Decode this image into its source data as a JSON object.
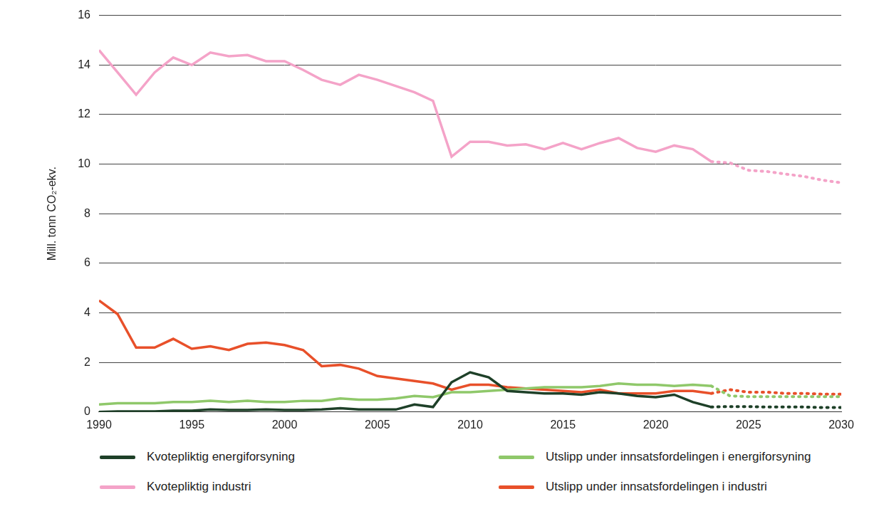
{
  "chart_data": {
    "type": "line",
    "y_label": "Mill. tonn CO₂-ekv.",
    "x": [
      1990,
      1991,
      1992,
      1993,
      1994,
      1995,
      1996,
      1997,
      1998,
      1999,
      2000,
      2001,
      2002,
      2003,
      2004,
      2005,
      2006,
      2007,
      2008,
      2009,
      2010,
      2011,
      2012,
      2013,
      2014,
      2015,
      2016,
      2017,
      2018,
      2019,
      2020,
      2021,
      2022,
      2023,
      2024,
      2025,
      2026,
      2027,
      2028,
      2029,
      2030
    ],
    "xlim": [
      1990,
      2030
    ],
    "xticks": [
      1990,
      1995,
      2000,
      2005,
      2010,
      2015,
      2020,
      2025,
      2030
    ],
    "ylim": [
      0,
      16
    ],
    "yticks": [
      0,
      2,
      4,
      6,
      8,
      10,
      12,
      14,
      16
    ],
    "grid": true,
    "legend": "bottom",
    "series": [
      {
        "name": "Kvotepliktig energiforsyning",
        "color": "#1e4028",
        "line_style": "solid",
        "values": [
          0.0,
          0.02,
          0.02,
          0.02,
          0.05,
          0.05,
          0.1,
          0.08,
          0.08,
          0.1,
          0.08,
          0.08,
          0.1,
          0.15,
          0.1,
          0.1,
          0.1,
          0.3,
          0.2,
          1.2,
          1.6,
          1.4,
          0.85,
          0.8,
          0.75,
          0.75,
          0.7,
          0.8,
          0.75,
          0.65,
          0.6,
          0.7,
          0.4,
          0.2,
          null,
          null,
          null,
          null,
          null,
          null,
          null
        ]
      },
      {
        "name": "Kvotepliktig energiforsyning",
        "color": "#1e4028",
        "line_style": "dotted",
        "values": [
          null,
          null,
          null,
          null,
          null,
          null,
          null,
          null,
          null,
          null,
          null,
          null,
          null,
          null,
          null,
          null,
          null,
          null,
          null,
          null,
          null,
          null,
          null,
          null,
          null,
          null,
          null,
          null,
          null,
          null,
          null,
          null,
          null,
          0.2,
          0.22,
          0.22,
          0.2,
          0.2,
          0.2,
          0.18,
          0.18
        ]
      },
      {
        "name": "Utslipp under innsatsfordelingen i energiforsyning",
        "color": "#8fc86a",
        "line_style": "solid",
        "values": [
          0.3,
          0.35,
          0.35,
          0.35,
          0.4,
          0.4,
          0.45,
          0.4,
          0.45,
          0.4,
          0.4,
          0.45,
          0.45,
          0.55,
          0.5,
          0.5,
          0.55,
          0.65,
          0.6,
          0.8,
          0.8,
          0.85,
          0.9,
          0.95,
          1.0,
          1.0,
          1.0,
          1.05,
          1.15,
          1.1,
          1.1,
          1.05,
          1.1,
          1.05,
          null,
          null,
          null,
          null,
          null,
          null,
          null
        ]
      },
      {
        "name": "Utslipp under innsatsfordelingen i energiforsyning",
        "color": "#8fc86a",
        "line_style": "dotted",
        "values": [
          null,
          null,
          null,
          null,
          null,
          null,
          null,
          null,
          null,
          null,
          null,
          null,
          null,
          null,
          null,
          null,
          null,
          null,
          null,
          null,
          null,
          null,
          null,
          null,
          null,
          null,
          null,
          null,
          null,
          null,
          null,
          null,
          null,
          1.05,
          0.65,
          0.62,
          0.62,
          0.62,
          0.62,
          0.62,
          0.62
        ]
      },
      {
        "name": "Kvotepliktig industri",
        "color": "#f4a3c8",
        "line_style": "solid",
        "values": [
          14.6,
          13.7,
          12.8,
          13.7,
          14.3,
          14.0,
          14.5,
          14.35,
          14.4,
          14.15,
          14.15,
          13.8,
          13.4,
          13.2,
          13.6,
          13.4,
          13.15,
          12.9,
          12.55,
          10.3,
          10.9,
          10.9,
          10.75,
          10.8,
          10.6,
          10.85,
          10.6,
          10.85,
          11.05,
          10.65,
          10.5,
          10.75,
          10.6,
          10.1,
          null,
          null,
          null,
          null,
          null,
          null,
          null
        ]
      },
      {
        "name": "Kvotepliktig industri",
        "color": "#f4a3c8",
        "line_style": "dotted",
        "values": [
          null,
          null,
          null,
          null,
          null,
          null,
          null,
          null,
          null,
          null,
          null,
          null,
          null,
          null,
          null,
          null,
          null,
          null,
          null,
          null,
          null,
          null,
          null,
          null,
          null,
          null,
          null,
          null,
          null,
          null,
          null,
          null,
          null,
          10.1,
          10.05,
          9.75,
          9.7,
          9.6,
          9.5,
          9.35,
          9.25
        ]
      },
      {
        "name": "Utslipp under innsatsfordelingen i industri",
        "color": "#e8502a",
        "line_style": "solid",
        "values": [
          4.5,
          3.95,
          2.6,
          2.6,
          2.95,
          2.55,
          2.65,
          2.5,
          2.75,
          2.8,
          2.7,
          2.5,
          1.85,
          1.9,
          1.75,
          1.45,
          1.35,
          1.25,
          1.15,
          0.9,
          1.1,
          1.1,
          1.0,
          0.95,
          0.9,
          0.85,
          0.8,
          0.9,
          0.75,
          0.75,
          0.75,
          0.85,
          0.85,
          0.75,
          null,
          null,
          null,
          null,
          null,
          null,
          null
        ]
      },
      {
        "name": "Utslipp under innsatsfordelingen i industri",
        "color": "#e8502a",
        "line_style": "dotted",
        "values": [
          null,
          null,
          null,
          null,
          null,
          null,
          null,
          null,
          null,
          null,
          null,
          null,
          null,
          null,
          null,
          null,
          null,
          null,
          null,
          null,
          null,
          null,
          null,
          null,
          null,
          null,
          null,
          null,
          null,
          null,
          null,
          null,
          null,
          0.75,
          0.9,
          0.8,
          0.8,
          0.75,
          0.75,
          0.72,
          0.72
        ]
      }
    ]
  }
}
